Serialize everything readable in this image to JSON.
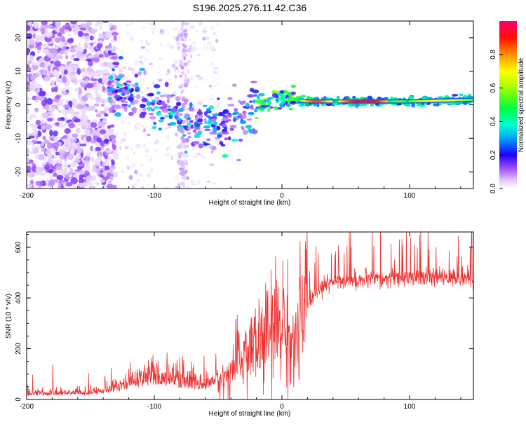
{
  "title": "S196.2025.276.11.42.C36",
  "chart_data": [
    {
      "type": "heatmap",
      "name": "spectrogram",
      "xlabel": "Height of straight line (km)",
      "ylabel": "Frequency (Hz)",
      "xlim": [
        -200,
        150
      ],
      "ylim": [
        -25,
        25
      ],
      "xticks": [
        -200,
        -100,
        0,
        100
      ],
      "yticks": [
        -20,
        -10,
        0,
        10,
        20
      ],
      "colorbar": {
        "label": "Normalized spectral amplitude",
        "range": [
          0,
          1
        ],
        "ticks": [
          "0.0",
          "0.2",
          "0.4",
          "0.6",
          "0.8"
        ],
        "tick_values": [
          0.0,
          0.2,
          0.4,
          0.6,
          0.8
        ],
        "colormap": [
          "#ffffff",
          "#cc99ff",
          "#7f00ff",
          "#0000ff",
          "#00c0ff",
          "#00ff80",
          "#80ff00",
          "#ffff00",
          "#ff8000",
          "#ff0000",
          "#ff0080"
        ]
      },
      "ridge": {
        "description_points": [
          {
            "x": -130,
            "f": 4
          },
          {
            "x": -110,
            "f": 2
          },
          {
            "x": -90,
            "f": -2
          },
          {
            "x": -70,
            "f": -5
          },
          {
            "x": -50,
            "f": -7
          },
          {
            "x": -35,
            "f": -5
          },
          {
            "x": -25,
            "f": -2
          },
          {
            "x": -10,
            "f": 1
          },
          {
            "x": 0,
            "f": 2
          },
          {
            "x": 20,
            "f": 1
          },
          {
            "x": 60,
            "f": 1
          },
          {
            "x": 100,
            "f": 1
          },
          {
            "x": 150,
            "f": 1.5
          }
        ]
      }
    },
    {
      "type": "line",
      "name": "snr",
      "xlabel": "Height of straight line (km)",
      "ylabel": "SNR (10 * v/v)",
      "xlim": [
        -200,
        150
      ],
      "ylim": [
        0,
        660
      ],
      "xticks": [
        -200,
        -100,
        0,
        100
      ],
      "yticks": [
        0,
        200,
        400,
        600
      ],
      "color": "#ee3333",
      "envelope": [
        {
          "x": -200,
          "y": 15
        },
        {
          "x": -150,
          "y": 18
        },
        {
          "x": -135,
          "y": 25
        },
        {
          "x": -120,
          "y": 40
        },
        {
          "x": -100,
          "y": 55
        },
        {
          "x": -80,
          "y": 45
        },
        {
          "x": -60,
          "y": 35
        },
        {
          "x": -45,
          "y": 80
        },
        {
          "x": -35,
          "y": 150
        },
        {
          "x": -25,
          "y": 200
        },
        {
          "x": -15,
          "y": 230
        },
        {
          "x": -5,
          "y": 280
        },
        {
          "x": 0,
          "y": 320
        },
        {
          "x": 5,
          "y": 250
        },
        {
          "x": 10,
          "y": 200
        },
        {
          "x": 15,
          "y": 320
        },
        {
          "x": 25,
          "y": 420
        },
        {
          "x": 40,
          "y": 470
        },
        {
          "x": 60,
          "y": 470
        },
        {
          "x": 80,
          "y": 475
        },
        {
          "x": 100,
          "y": 478
        },
        {
          "x": 120,
          "y": 480
        },
        {
          "x": 150,
          "y": 480
        }
      ]
    }
  ]
}
